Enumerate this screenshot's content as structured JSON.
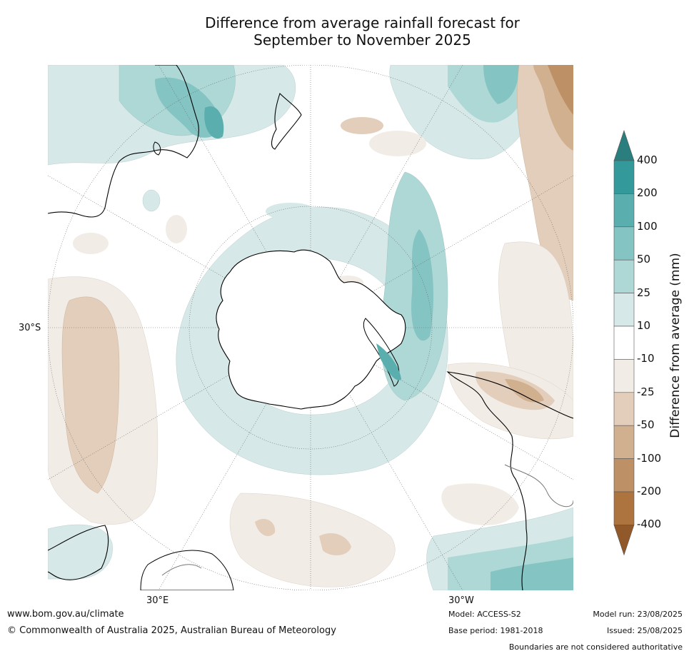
{
  "title": {
    "line1": "Difference from average rainfall forecast for",
    "line2": "September to November 2025"
  },
  "map_labels": {
    "lat_label": "30°S",
    "lon_east": "30°E",
    "lon_west": "30°W"
  },
  "colorbar": {
    "title": "Difference from average (mm)",
    "ticks": [
      "400",
      "200",
      "100",
      "50",
      "25",
      "10",
      "-10",
      "-25",
      "-50",
      "-100",
      "-200",
      "-400"
    ],
    "colors": {
      "over": "#2a7f7e",
      "above_200": "#34999a",
      "c100_200": "#5aaeae",
      "c50_100": "#84c4c3",
      "c25_50": "#aed8d6",
      "c10_25": "#d6e9e8",
      "neutral": "#ffffff",
      "cm10_m25": "#f2ece6",
      "cm25_m50": "#e2cebb",
      "cm50_m100": "#d1b090",
      "cm100_m200": "#be9066",
      "below_m200": "#ae743f",
      "under": "#91592a"
    }
  },
  "footer": {
    "url": "www.bom.gov.au/climate",
    "copyright": "© Commonwealth of Australia 2025, Australian Bureau of Meteorology",
    "model": "Model: ACCESS-S2",
    "base_period": "Base period: 1981-2018",
    "model_run": "Model run: 23/08/2025",
    "issued": "Issued: 25/08/2025",
    "disclaimer": "Boundaries are not considered authoritative"
  }
}
